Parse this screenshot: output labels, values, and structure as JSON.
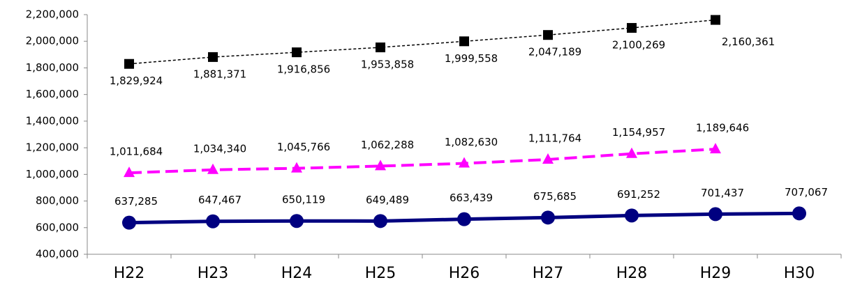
{
  "chart_data": {
    "type": "line",
    "categories": [
      "H22",
      "H23",
      "H24",
      "H25",
      "H26",
      "H27",
      "H28",
      "H29",
      "H30"
    ],
    "ylim": [
      400000,
      2200000
    ],
    "yticks": [
      {
        "value": 400000,
        "label": "400,000"
      },
      {
        "value": 600000,
        "label": "600,000"
      },
      {
        "value": 800000,
        "label": "800,000"
      },
      {
        "value": 1000000,
        "label": "1,000,000"
      },
      {
        "value": 1200000,
        "label": "1,200,000"
      },
      {
        "value": 1400000,
        "label": "1,400,000"
      },
      {
        "value": 1600000,
        "label": "1,600,000"
      },
      {
        "value": 1800000,
        "label": "1,800,000"
      },
      {
        "value": 2000000,
        "label": "2,000,000"
      },
      {
        "value": 2200000,
        "label": "2,200,000"
      }
    ],
    "series": [
      {
        "color": "#000000",
        "marker": "square",
        "dashed": true,
        "label_position": "below",
        "values": [
          1829924,
          1881371,
          1916856,
          1953858,
          1999558,
          2047189,
          2100269,
          2160361,
          null
        ],
        "value_labels": [
          "1,829,924",
          "1,881,371",
          "1,916,856",
          "1,953,858",
          "1,999,558",
          "2,047,189",
          "2,100,269",
          "2,160,361",
          null
        ]
      },
      {
        "color": "#ff00ff",
        "marker": "triangle",
        "dashed": true,
        "label_position": "above",
        "values": [
          1011684,
          1034340,
          1045766,
          1062288,
          1082630,
          1111764,
          1154957,
          1189646,
          null
        ],
        "value_labels": [
          "1,011,684",
          "1,034,340",
          "1,045,766",
          "1,062,288",
          "1,082,630",
          "1,111,764",
          "1,154,957",
          "1,189,646",
          null
        ]
      },
      {
        "color": "#000080",
        "marker": "circle",
        "dashed": false,
        "label_position": "above",
        "values": [
          637285,
          647467,
          650119,
          649489,
          663439,
          675685,
          691252,
          701437,
          707067
        ],
        "value_labels": [
          "637,285",
          "647,467",
          "650,119",
          "649,489",
          "663,439",
          "675,685",
          "691,252",
          "701,437",
          "707,067"
        ]
      }
    ]
  }
}
